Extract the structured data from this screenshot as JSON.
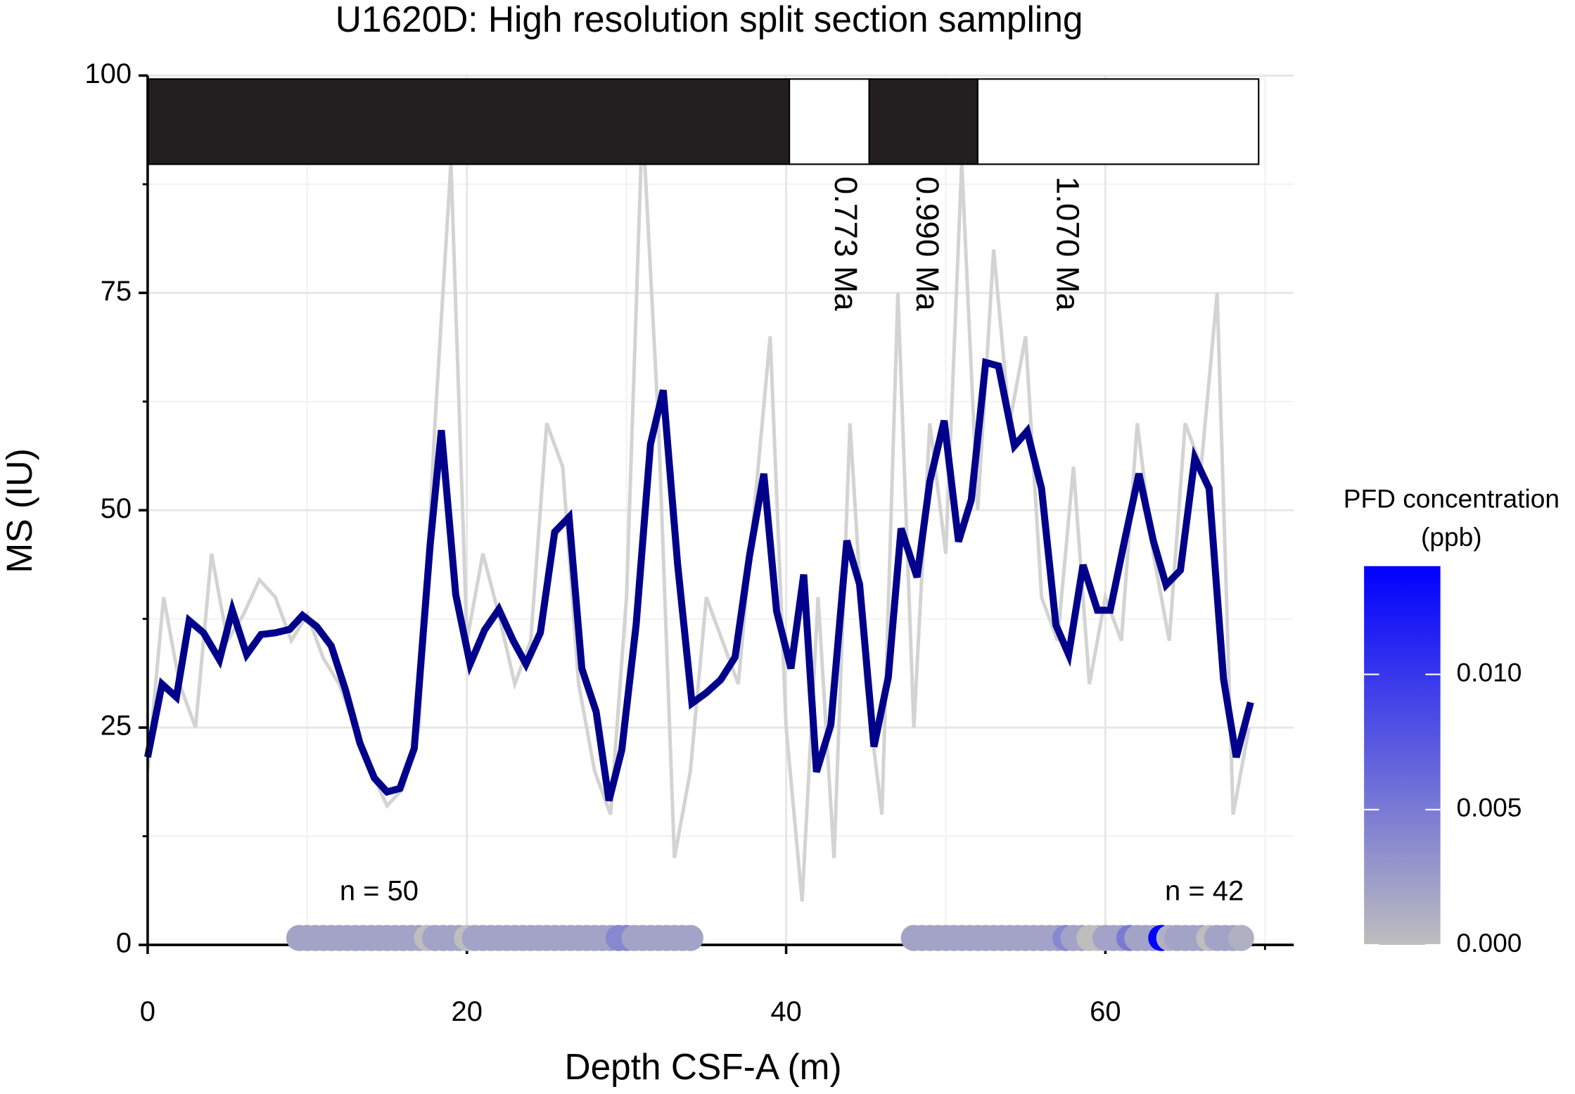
{
  "chart_data": {
    "type": "line",
    "title": "U1620D: High resolution split section sampling",
    "x_label": "Depth CSF-A (m)",
    "y_label": "MS (IU)",
    "xlim": [
      0,
      71.8
    ],
    "ylim": [
      0,
      100
    ],
    "xticks": [
      0,
      20,
      40,
      60
    ],
    "yticks": [
      0,
      25,
      50,
      75,
      100
    ],
    "x_minor_ticks": [
      10,
      30,
      50,
      70
    ],
    "y_minor_ticks": [
      12.5,
      37.5,
      62.5,
      87.5
    ],
    "grid": true,
    "series": [
      {
        "color": "#d3d3d3",
        "x": [
          0,
          1,
          2,
          3,
          4,
          5,
          6,
          7,
          8,
          9,
          10,
          11,
          12,
          13,
          14,
          15,
          16,
          17,
          18,
          19,
          20,
          21,
          22,
          23,
          24,
          25,
          26,
          27,
          28,
          29,
          30,
          31,
          32,
          33,
          34,
          35,
          36,
          37,
          38,
          39,
          40,
          41,
          42,
          43,
          44,
          45,
          46,
          47,
          48,
          49,
          50,
          51,
          52,
          53,
          54,
          55,
          56,
          57,
          58,
          59,
          60,
          61,
          62,
          63,
          64,
          65,
          66,
          67,
          68,
          69
        ],
        "values": [
          20,
          40,
          30,
          25,
          45,
          35,
          38,
          42,
          40,
          35,
          38,
          33,
          30,
          25,
          20,
          16,
          18,
          25,
          60,
          90,
          35,
          45,
          38,
          30,
          35,
          60,
          55,
          30,
          20,
          15,
          40,
          95,
          60,
          10,
          20,
          40,
          35,
          30,
          50,
          70,
          25,
          5,
          40,
          10,
          60,
          30,
          15,
          75,
          25,
          60,
          45,
          90,
          50,
          80,
          60,
          70,
          40,
          35,
          55,
          30,
          40,
          35,
          60,
          45,
          35,
          60,
          55,
          75,
          15,
          25
        ]
      },
      {
        "color": "#00008b",
        "x": [
          0,
          0.9,
          1.8,
          2.6,
          3.5,
          4.5,
          5.3,
          6.2,
          7.1,
          8,
          8.9,
          9.7,
          10.6,
          11.5,
          12.4,
          13.3,
          14.2,
          15,
          15.8,
          16.7,
          17.7,
          18.4,
          19.3,
          20.2,
          21.1,
          22,
          22.9,
          23.7,
          24.6,
          25.5,
          26.4,
          27.2,
          28.1,
          28.9,
          29.7,
          30.6,
          31.5,
          32.3,
          33.2,
          34.1,
          35,
          35.9,
          36.8,
          37.7,
          38.6,
          39.4,
          40.3,
          41.1,
          41.9,
          42.8,
          43.8,
          44.6,
          45.5,
          46.4,
          47.2,
          48.2,
          49,
          49.9,
          50.8,
          51.6,
          52.5,
          53.3,
          54.3,
          55.1,
          56,
          56.9,
          57.7,
          58.6,
          59.5,
          60.3,
          61.2,
          62.1,
          63,
          63.8,
          64.7,
          65.6,
          66.5,
          67.4,
          68.2,
          69.1
        ],
        "values": [
          21.6,
          30,
          28.5,
          37.3,
          35.9,
          32.8,
          38.5,
          33.4,
          35.7,
          35.9,
          36.3,
          37.9,
          36.6,
          34.4,
          29.3,
          23.2,
          19.2,
          17.6,
          18,
          22.6,
          46.1,
          59.2,
          40.3,
          32.3,
          36.2,
          38.6,
          35,
          32.3,
          35.9,
          47.5,
          49.2,
          31.8,
          26.8,
          16.6,
          22.4,
          36.8,
          57.6,
          63.8,
          43.8,
          27.8,
          29,
          30.5,
          33.1,
          44.7,
          54.2,
          38.4,
          31.8,
          42.6,
          19.9,
          25.3,
          46.5,
          41.5,
          22.8,
          30.8,
          47.9,
          42.3,
          53.3,
          60.3,
          46.4,
          51.2,
          67,
          66.6,
          57.4,
          59.1,
          52.5,
          36.8,
          33.4,
          43.7,
          38.5,
          38.5,
          46.5,
          54.2,
          46.5,
          41.4,
          43.1,
          56,
          52.5,
          30.6,
          21.6,
          27.9
        ]
      }
    ],
    "polarity": {
      "y_range": [
        89.8,
        99.6
      ],
      "segments": [
        {
          "start": 0,
          "end": 40.2,
          "color": "#231f20"
        },
        {
          "start": 40.2,
          "end": 45.2,
          "color": "#ffffff"
        },
        {
          "start": 45.2,
          "end": 52.0,
          "color": "#231f20"
        },
        {
          "start": 52.0,
          "end": 69.6,
          "color": "#ffffff"
        }
      ]
    },
    "annotations": [
      {
        "text": "0.773 Ma",
        "x": 43.6,
        "y": 88.4
      },
      {
        "text": "0.990 Ma",
        "x": 48.7,
        "y": 88.4
      },
      {
        "text": "1.070 Ma",
        "x": 57.5,
        "y": 88.4
      }
    ],
    "samples": [
      {
        "label": "n = 50",
        "label_x": 14.5,
        "label_y": 6,
        "y": 0.8,
        "x": [
          9.5,
          10,
          10.5,
          11,
          11.5,
          12,
          12.5,
          13,
          13.5,
          14,
          14.5,
          15,
          15.5,
          16,
          16.5,
          17,
          17.5,
          18,
          18.5,
          19,
          19.5,
          20,
          20.5,
          21,
          21.5,
          22,
          22.5,
          23,
          23.5,
          24,
          24.5,
          25,
          25.5,
          26,
          26.5,
          27,
          27.5,
          28,
          28.5,
          29,
          29.5,
          30,
          30.5,
          31,
          31.5,
          32,
          32.5,
          33,
          33.5,
          34
        ],
        "pfd": [
          0.002,
          0.002,
          0.002,
          0.002,
          0.002,
          0.002,
          0.002,
          0.002,
          0.002,
          0.002,
          0.002,
          0.002,
          0.002,
          0.002,
          0.002,
          0.002,
          0,
          0.002,
          0.002,
          0.002,
          0.002,
          0,
          0.002,
          0.002,
          0.002,
          0.002,
          0.002,
          0.002,
          0.002,
          0.002,
          0.002,
          0.002,
          0.002,
          0.002,
          0.002,
          0.002,
          0.002,
          0.002,
          0.002,
          0.002,
          0.004,
          0.004,
          0.002,
          0.002,
          0.002,
          0.002,
          0.002,
          0.002,
          0.002,
          0.002
        ]
      },
      {
        "label": "n = 42",
        "label_x": 66.2,
        "label_y": 6,
        "y": 0.8,
        "x": [
          48,
          48.5,
          49,
          49.5,
          50,
          50.5,
          51,
          51.5,
          52,
          52.5,
          53,
          53.5,
          54,
          54.5,
          55,
          55.5,
          56,
          56.5,
          57,
          57.5,
          58,
          58.5,
          59,
          59.5,
          60,
          60.5,
          61,
          61.5,
          62,
          62.5,
          63,
          63.5,
          64,
          64.5,
          65,
          65.5,
          66,
          66.5,
          67,
          67.5,
          68,
          68.5
        ],
        "pfd": [
          0.002,
          0.002,
          0.002,
          0.002,
          0.002,
          0.002,
          0.002,
          0.002,
          0.002,
          0.002,
          0.002,
          0.002,
          0.002,
          0.002,
          0.002,
          0.002,
          0.002,
          0.002,
          0.002,
          0.004,
          0.002,
          0.002,
          0,
          0,
          0.002,
          0.002,
          0.002,
          0.005,
          0.002,
          0.002,
          0.002,
          0.014,
          0.001,
          0.002,
          0.002,
          0.002,
          0.002,
          0,
          0.002,
          0.002,
          0.002,
          0.001
        ]
      }
    ],
    "colorbar": {
      "title": [
        "PFD concentration",
        "(ppb)"
      ],
      "lim": [
        0,
        0.014
      ],
      "ticks": [
        {
          "value": 0,
          "label": "0.000"
        },
        {
          "value": 0.005,
          "label": "0.005"
        },
        {
          "value": 0.01,
          "label": "0.010"
        }
      ],
      "low_color": "#bebebe",
      "high_color": "#0000ff"
    }
  }
}
